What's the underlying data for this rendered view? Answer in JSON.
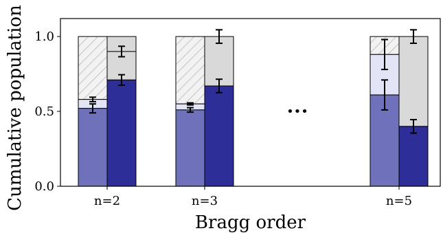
{
  "chart_data": {
    "type": "bar",
    "xlabel": "Bragg order",
    "ylabel": "Cumulative population",
    "ylim": [
      0.0,
      1.12
    ],
    "yticks": [
      0.0,
      0.5,
      1.0
    ],
    "ytick_labels": [
      "0.0",
      "0.5",
      "1.0"
    ],
    "ellipsis": "•••",
    "grid": false,
    "colors": {
      "dark_left": "#6f72bb",
      "dark_right": "#2e2e99",
      "light_left": "#e3e4f5",
      "light_right": "#d9d9d9",
      "hatch_fill": "#f2f2f2",
      "hatch_line": "#bdbdbd",
      "edge": "#000000"
    },
    "groups": [
      {
        "label": "n=2",
        "left": {
          "bottom": 0.52,
          "bottom_err": 0.03,
          "top": 0.58,
          "top_err": 0.015,
          "total": 1.0
        },
        "right": {
          "bottom": 0.71,
          "bottom_err": 0.035,
          "top": 0.9,
          "top_err": 0.035,
          "total": 1.0
        }
      },
      {
        "label": "n=3",
        "left": {
          "bottom": 0.51,
          "bottom_err": 0.015,
          "top": 0.55,
          "top_err": 0.007,
          "total": 1.0
        },
        "right": {
          "bottom": 0.67,
          "bottom_err": 0.045,
          "top": 1.0,
          "top_err": 0.045,
          "total": 1.0
        }
      },
      {
        "label": "n=5",
        "left": {
          "bottom": 0.61,
          "bottom_err": 0.1,
          "top": 0.88,
          "top_err": 0.1,
          "total": 1.0
        },
        "right": {
          "bottom": 0.4,
          "bottom_err": 0.045,
          "top": 1.0,
          "top_err": 0.045,
          "total": 1.0
        }
      }
    ]
  }
}
